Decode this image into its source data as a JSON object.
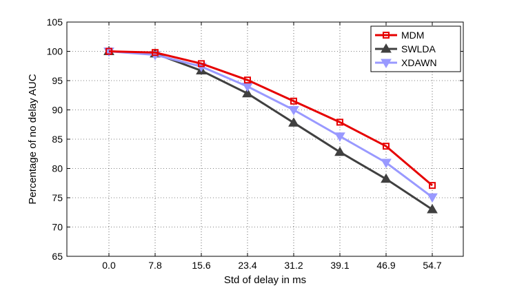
{
  "chart_data": {
    "type": "line",
    "title": "",
    "xlabel": "Std of delay in ms",
    "ylabel": "Percentage of no delay AUC",
    "categories": [
      "0.0",
      "7.8",
      "15.6",
      "23.4",
      "31.2",
      "39.1",
      "46.9",
      "54.7"
    ],
    "ylim": [
      65,
      105
    ],
    "yticks": [
      "65",
      "70",
      "75",
      "80",
      "85",
      "90",
      "95",
      "100",
      "105"
    ],
    "grid": true,
    "legend_position": "top-right",
    "series": [
      {
        "name": "MDM",
        "color": "#e60000",
        "marker": "square",
        "values": [
          100,
          99.8,
          97.9,
          95.1,
          91.5,
          87.9,
          83.8,
          77.1
        ]
      },
      {
        "name": "SWLDA",
        "color": "#404040",
        "marker": "triangle-up",
        "values": [
          100,
          99.6,
          96.7,
          92.8,
          87.8,
          82.8,
          78.2,
          73.0
        ]
      },
      {
        "name": "XDAWN",
        "color": "#9999ff",
        "marker": "triangle-down",
        "values": [
          100,
          99.4,
          97.4,
          94.0,
          90.0,
          85.5,
          81.0,
          75.1
        ]
      }
    ]
  }
}
